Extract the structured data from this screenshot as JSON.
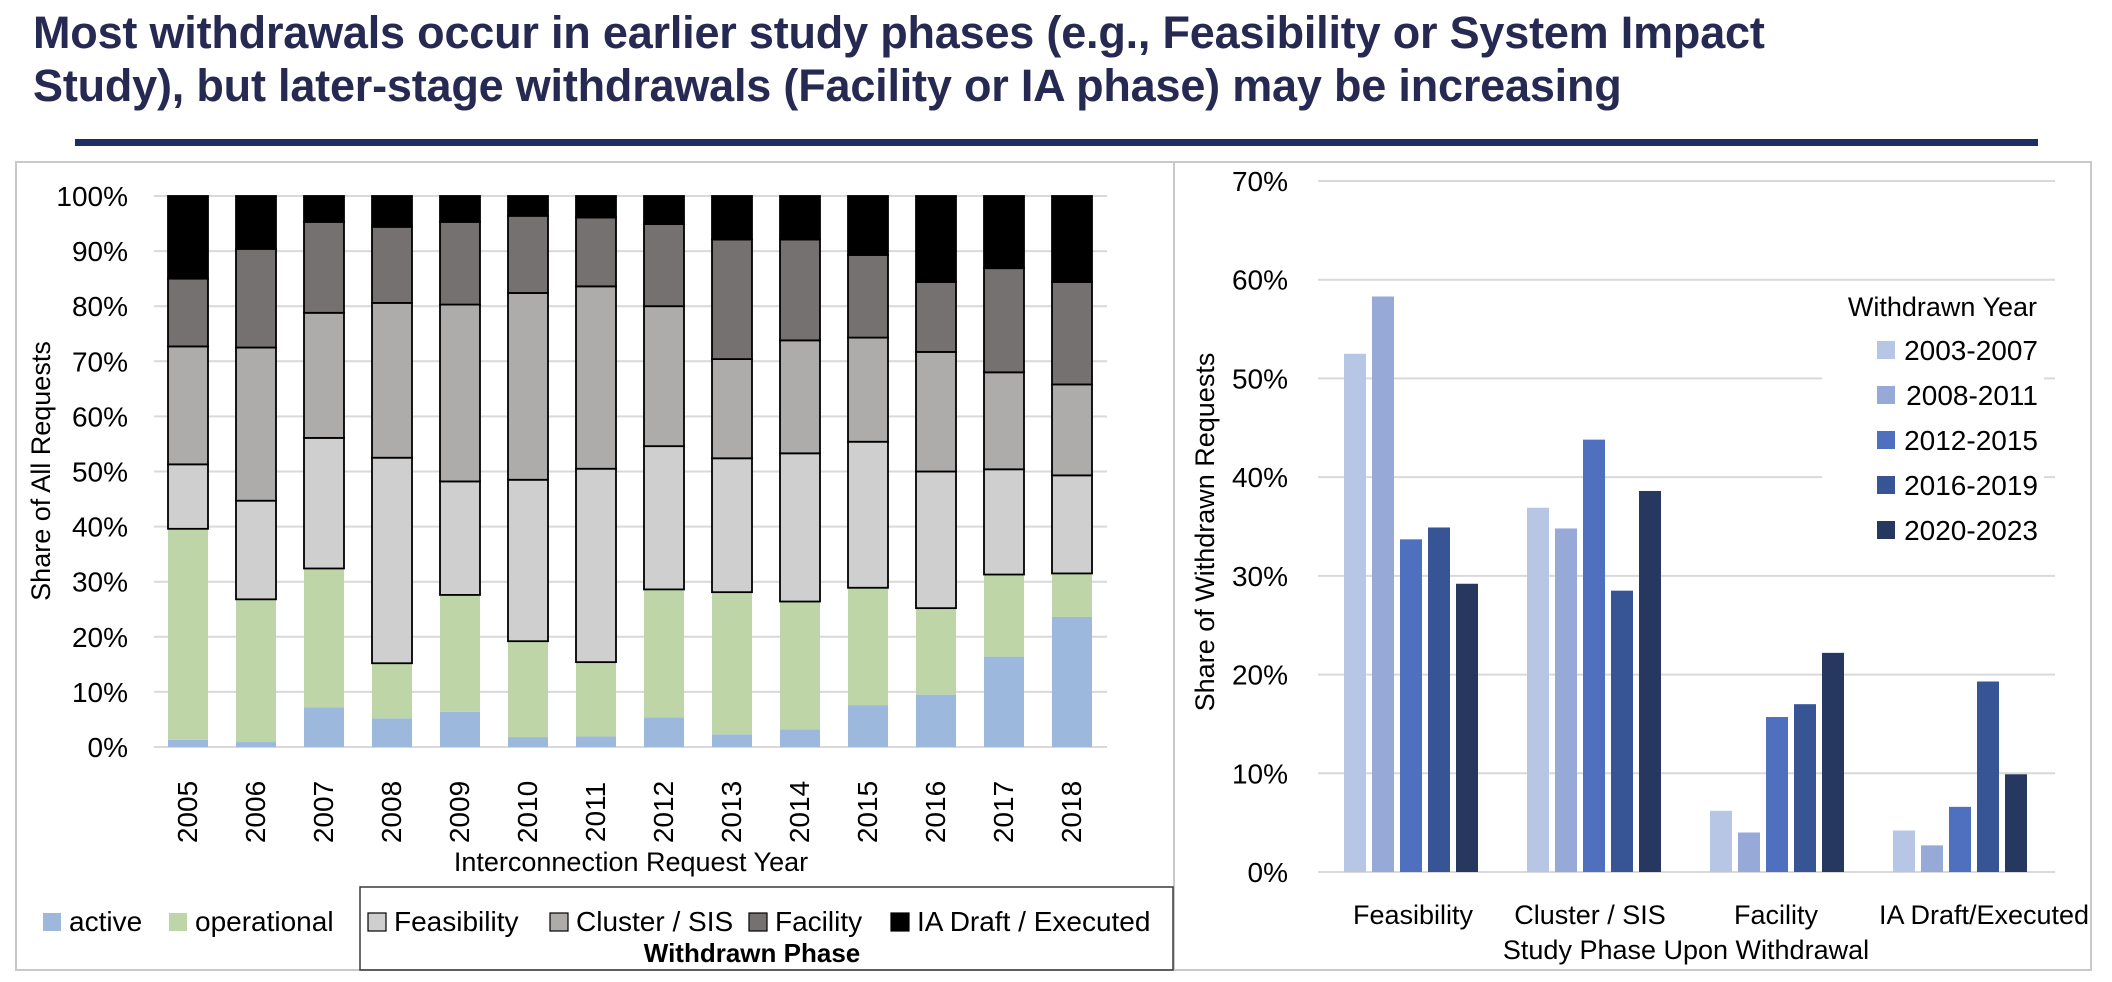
{
  "title": {
    "line1": "Most withdrawals occur in earlier study phases (e.g., Feasibility or System Impact",
    "line2": "Study), but later-stage withdrawals (Facility or IA phase) may be increasing"
  },
  "colors": {
    "title": "#262a52",
    "rule": "#1c2e66",
    "gridline": "#d9d9d9",
    "active": "#9cb8dd",
    "operational": "#bdd5a7",
    "feasibility": "#d0cfcf",
    "cluster": "#aeabab",
    "facility": "#757170",
    "ia": "#000000",
    "y2003_2007": "#b7c6e4",
    "y2008_2011": "#97a9d7",
    "y2012_2015": "#4f70bf",
    "y2016_2019": "#375494",
    "y2020_2023": "#263760"
  },
  "chart_data": [
    {
      "type": "bar",
      "stacked": true,
      "title": "",
      "xlabel": "Interconnection Request Year",
      "ylabel": "Share of All Requests",
      "ylim": [
        0,
        1
      ],
      "yticks": [
        "0%",
        "10%",
        "20%",
        "30%",
        "40%",
        "50%",
        "60%",
        "70%",
        "80%",
        "90%",
        "100%"
      ],
      "grid": true,
      "categories": [
        "2005",
        "2006",
        "2007",
        "2008",
        "2009",
        "2010",
        "2011",
        "2012",
        "2013",
        "2014",
        "2015",
        "2016",
        "2017",
        "2018"
      ],
      "series": [
        {
          "name": "active",
          "key": "active",
          "outlined": false,
          "values": [
            1.3,
            0.9,
            7.2,
            5.2,
            6.4,
            1.8,
            1.9,
            5.4,
            2.3,
            3.2,
            7.6,
            9.5,
            16.4,
            23.6
          ]
        },
        {
          "name": "operational",
          "key": "operational",
          "outlined": false,
          "values": [
            38.3,
            25.9,
            25.2,
            10.0,
            21.2,
            17.4,
            13.5,
            23.2,
            25.8,
            23.2,
            21.3,
            15.7,
            14.9,
            7.9
          ]
        },
        {
          "name": "Feasibility",
          "key": "feasibility",
          "outlined": true,
          "values": [
            11.7,
            17.9,
            23.7,
            37.3,
            20.6,
            29.3,
            35.1,
            26.0,
            24.3,
            26.9,
            26.5,
            24.8,
            19.1,
            17.8
          ]
        },
        {
          "name": "Cluster / SIS",
          "key": "cluster",
          "outlined": true,
          "values": [
            21.4,
            27.8,
            22.7,
            28.1,
            32.1,
            33.9,
            33.1,
            25.4,
            18.0,
            20.5,
            18.9,
            21.7,
            17.6,
            16.5
          ]
        },
        {
          "name": "Facility",
          "key": "facility",
          "outlined": true,
          "values": [
            12.3,
            17.9,
            16.5,
            13.8,
            15.0,
            14.0,
            12.5,
            14.9,
            21.7,
            18.3,
            15.0,
            12.7,
            18.9,
            18.6
          ]
        },
        {
          "name": "IA Draft / Executed",
          "key": "ia",
          "outlined": true,
          "values": [
            15.0,
            9.6,
            4.7,
            5.6,
            4.7,
            3.6,
            3.9,
            5.1,
            7.9,
            7.9,
            10.7,
            15.6,
            13.1,
            15.6
          ]
        }
      ],
      "legend": {
        "placement": "bottom",
        "plain_items": [
          "active",
          "operational"
        ],
        "boxed_items": [
          "Feasibility",
          "Cluster / SIS",
          "Facility",
          "IA Draft / Executed"
        ],
        "boxed_title": "Withdrawn Phase"
      }
    },
    {
      "type": "bar",
      "stacked": false,
      "title": "",
      "xlabel": "Study Phase Upon Withdrawal",
      "ylabel": "Share of Withdrawn Requests",
      "ylim": [
        0,
        70
      ],
      "yticks": [
        "0%",
        "10%",
        "20%",
        "30%",
        "40%",
        "50%",
        "60%",
        "70%"
      ],
      "grid": true,
      "categories": [
        "Feasibility",
        "Cluster / SIS",
        "Facility",
        "IA Draft/Executed"
      ],
      "series": [
        {
          "name": "2003-2007",
          "key": "y2003_2007",
          "values": [
            52.5,
            36.9,
            6.2,
            4.2
          ]
        },
        {
          "name": "2008-2011",
          "key": "y2008_2011",
          "values": [
            58.3,
            34.8,
            4.0,
            2.7
          ]
        },
        {
          "name": "2012-2015",
          "key": "y2012_2015",
          "values": [
            33.7,
            43.8,
            15.7,
            6.6
          ]
        },
        {
          "name": "2016-2019",
          "key": "y2016_2019",
          "values": [
            34.9,
            28.5,
            17.0,
            19.3
          ]
        },
        {
          "name": "2020-2023",
          "key": "y2020_2023",
          "values": [
            29.2,
            38.6,
            22.2,
            9.9
          ]
        }
      ],
      "legend": {
        "placement": "top-right",
        "title": "Withdrawn Year"
      }
    }
  ]
}
